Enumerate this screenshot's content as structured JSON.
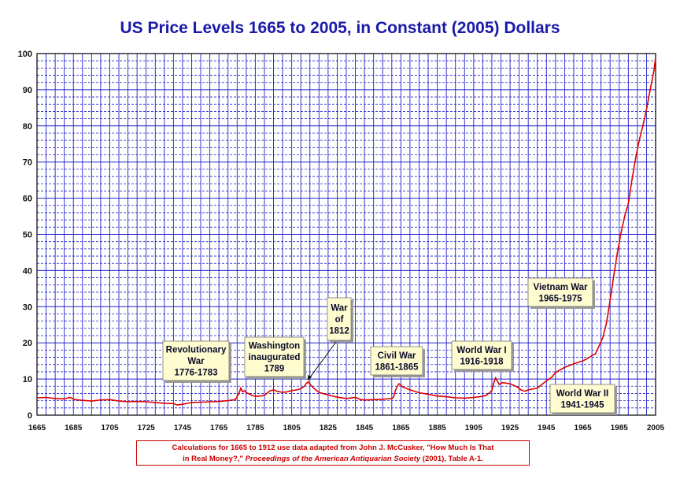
{
  "chart_data": {
    "type": "line",
    "title": "US Price Levels 1665 to 2005, in Constant (2005) Dollars",
    "xlabel": "",
    "ylabel": "",
    "xlim": [
      1665,
      2005
    ],
    "ylim": [
      0,
      100
    ],
    "x_ticks": [
      1665,
      1685,
      1705,
      1725,
      1745,
      1765,
      1785,
      1805,
      1825,
      1845,
      1865,
      1885,
      1905,
      1925,
      1945,
      1965,
      1985,
      2005
    ],
    "y_ticks": [
      0,
      10,
      20,
      30,
      40,
      50,
      60,
      70,
      80,
      90,
      100
    ],
    "grid": true,
    "line_color": "#dd0000",
    "grid_color": "#2222cc",
    "series": [
      {
        "x": [
          1665,
          1670,
          1675,
          1680,
          1683,
          1686,
          1690,
          1695,
          1700,
          1705,
          1710,
          1715,
          1720,
          1725,
          1730,
          1735,
          1740,
          1742,
          1745,
          1748,
          1750,
          1755,
          1760,
          1765,
          1770,
          1774,
          1776,
          1777,
          1778,
          1779,
          1780,
          1782,
          1783,
          1785,
          1788,
          1790,
          1793,
          1795,
          1797,
          1800,
          1802,
          1805,
          1808,
          1810,
          1812,
          1813,
          1814,
          1815,
          1817,
          1820,
          1825,
          1830,
          1835,
          1840,
          1843,
          1845,
          1850,
          1855,
          1860,
          1861,
          1862,
          1863,
          1864,
          1865,
          1866,
          1870,
          1875,
          1880,
          1885,
          1890,
          1895,
          1900,
          1905,
          1910,
          1912,
          1915,
          1916,
          1917,
          1918,
          1919,
          1920,
          1921,
          1925,
          1929,
          1931,
          1933,
          1935,
          1940,
          1942,
          1945,
          1948,
          1950,
          1955,
          1960,
          1965,
          1968,
          1970,
          1972,
          1974,
          1976,
          1978,
          1980,
          1982,
          1984,
          1986,
          1988,
          1990,
          1992,
          1994,
          1996,
          1998,
          2000,
          2002,
          2004,
          2005
        ],
        "y": [
          4.8,
          4.9,
          4.6,
          4.5,
          4.9,
          4.3,
          4.1,
          3.9,
          4.2,
          4.3,
          3.9,
          3.7,
          3.8,
          3.7,
          3.5,
          3.3,
          3.2,
          2.8,
          3.0,
          3.3,
          3.5,
          3.6,
          3.7,
          3.8,
          4.0,
          4.3,
          6.0,
          7.5,
          6.5,
          6.8,
          6.2,
          5.8,
          5.5,
          5.2,
          5.3,
          5.5,
          6.7,
          7.0,
          6.6,
          6.3,
          6.4,
          6.8,
          7.0,
          7.3,
          8.0,
          8.8,
          9.2,
          8.6,
          7.5,
          6.3,
          5.6,
          5.0,
          4.6,
          4.9,
          4.3,
          4.2,
          4.3,
          4.4,
          4.6,
          5.0,
          6.8,
          8.0,
          8.7,
          8.3,
          7.8,
          7.0,
          6.2,
          5.8,
          5.3,
          5.1,
          4.8,
          4.7,
          4.9,
          5.2,
          5.5,
          6.8,
          8.8,
          10.3,
          9.5,
          8.5,
          8.8,
          9.0,
          8.7,
          7.8,
          7.0,
          6.6,
          7.0,
          7.5,
          8.3,
          9.5,
          10.5,
          11.8,
          13.2,
          14.2,
          15.0,
          15.8,
          16.5,
          17.0,
          19.2,
          21.5,
          25.5,
          31.8,
          38.5,
          45.0,
          50.5,
          55.0,
          58.5,
          65.0,
          71.0,
          76.0,
          80.0,
          84.5,
          90.0,
          95.0,
          99.0
        ]
      }
    ],
    "annotations": [
      {
        "lines": [
          "Revolutionary",
          "War",
          "1776-1783"
        ]
      },
      {
        "lines": [
          "Washington",
          "inaugurated",
          "1789"
        ]
      },
      {
        "lines": [
          "War",
          "of",
          "1812"
        ]
      },
      {
        "lines": [
          "Civil War",
          "1861-1865"
        ]
      },
      {
        "lines": [
          "World War I",
          "1916-1918"
        ]
      },
      {
        "lines": [
          "Vietnam War",
          "1965-1975"
        ]
      },
      {
        "lines": [
          "World War II",
          "1941-1945"
        ]
      }
    ]
  },
  "credit": {
    "line1": "Calculations for 1665 to 1912 use data adapted from John J. McCusker, \"How Much Is That",
    "line2a": "in Real Money?,\" ",
    "line2b": "Proceedings of the American Antiquarian Society",
    "line2c": " (2001), Table A-1."
  }
}
